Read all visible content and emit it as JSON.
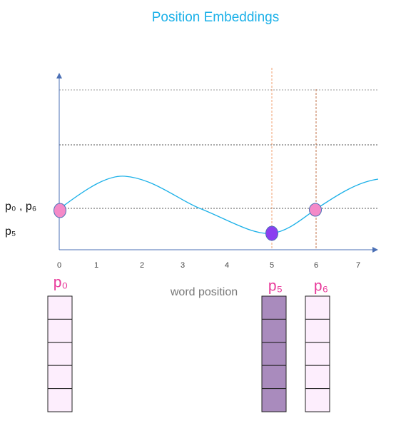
{
  "title": "Position Embeddings",
  "x_axis": {
    "label": "word position",
    "ticks": [
      "0",
      "1",
      "2",
      "3",
      "4",
      "5",
      "6",
      "7"
    ]
  },
  "point_labels": [
    "p₀ ,  p₆",
    "p₅"
  ],
  "columns": [
    "p₀",
    "p₅",
    "p₆"
  ]
}
